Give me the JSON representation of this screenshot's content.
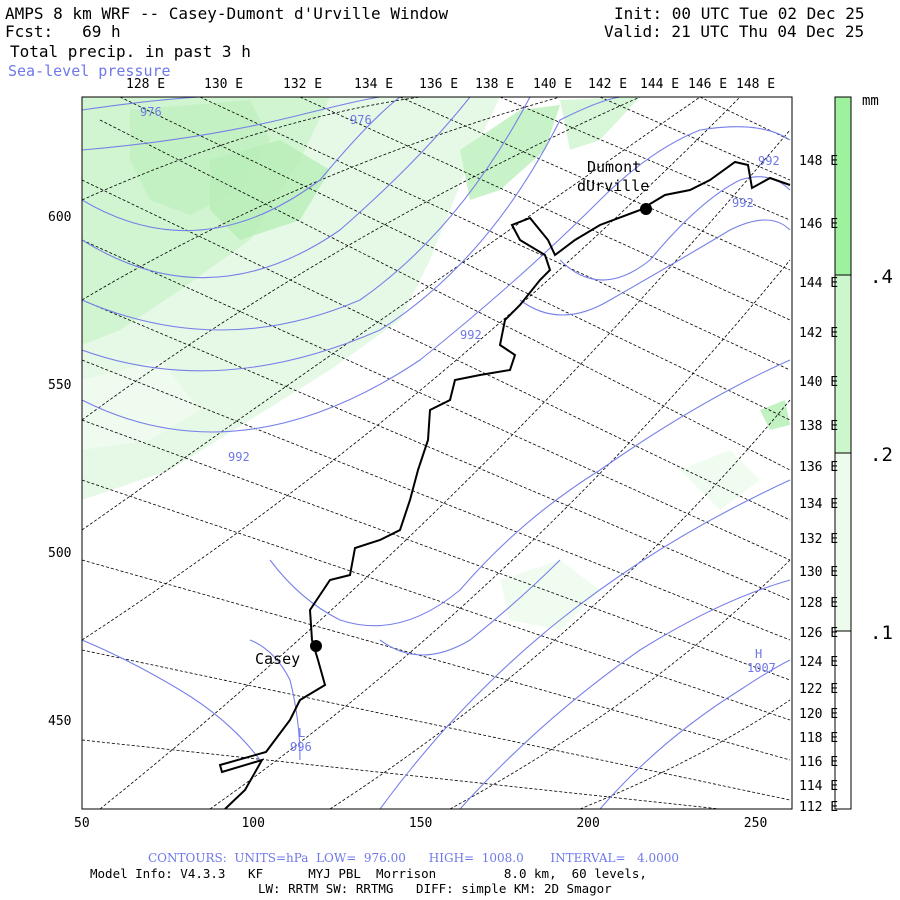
{
  "header": {
    "line1": "AMPS 8 km WRF -- Casey-Dumont d'Urville Window",
    "fcst": "Fcst:   69 h",
    "field1": "Total precip. in past 3 h",
    "field2": "Sea-level pressure",
    "init": "Init: 00 UTC Tue 02 Dec 25",
    "valid": "Valid: 21 UTC Thu 04 Dec 25"
  },
  "top_lon_labels": [
    "128 E",
    "130 E",
    "132 E",
    "134 E",
    "136 E",
    "138 E",
    "140 E",
    "142 E",
    "144 E",
    "146 E",
    "148 E"
  ],
  "right_lon_labels": [
    "148 E",
    "146 E",
    "144 E",
    "142 E",
    "140 E",
    "138 E",
    "136 E",
    "134 E",
    "132 E",
    "130 E",
    "128 E",
    "126 E",
    "124 E",
    "122 E",
    "120 E",
    "118 E",
    "116 E",
    "114 E",
    "112 E"
  ],
  "x_axis": {
    "ticks": [
      "50",
      "100",
      "150",
      "200",
      "250"
    ],
    "values": [
      50,
      100,
      150,
      200,
      250
    ]
  },
  "y_axis": {
    "ticks": [
      "600",
      "550",
      "500",
      "450"
    ],
    "values": [
      600,
      550,
      500,
      450
    ]
  },
  "stations": [
    {
      "name_line1": "Casey",
      "name_line2": "",
      "x": 120,
      "y": 473
    },
    {
      "name_line1": "Dumont",
      "name_line2": "dUrville",
      "x": 219,
      "y": 604
    }
  ],
  "isobar_labels": [
    "976",
    "976",
    "992",
    "992",
    "992",
    "992",
    "996"
  ],
  "pressure_centers": [
    {
      "letter": "H",
      "value": "1007"
    },
    {
      "letter": "L",
      "value": "996"
    }
  ],
  "colorbar": {
    "unit": "mm",
    "labels": [
      ".4",
      ".2",
      ".1"
    ],
    "colors": [
      "#9ef29e",
      "#ccf7cc",
      "#ecfbec"
    ]
  },
  "footer": {
    "contours": "CONTOURS:  UNITS=hPa  LOW=  976.00      HIGH=  1008.0       INTERVAL=   4.0000",
    "model1": "Model Info: V4.3.3   KF      MYJ PBL  Morrison         8.0 km,  60 levels,",
    "model2": "LW: RRTM SW: RRTMG   DIFF: simple KM: 2D Smagor"
  },
  "colors": {
    "isobar": "#7880e8",
    "precip_light": "#e3f8e3",
    "precip_med": "#c2f2c2",
    "precip_heavy": "#9ee89e"
  }
}
